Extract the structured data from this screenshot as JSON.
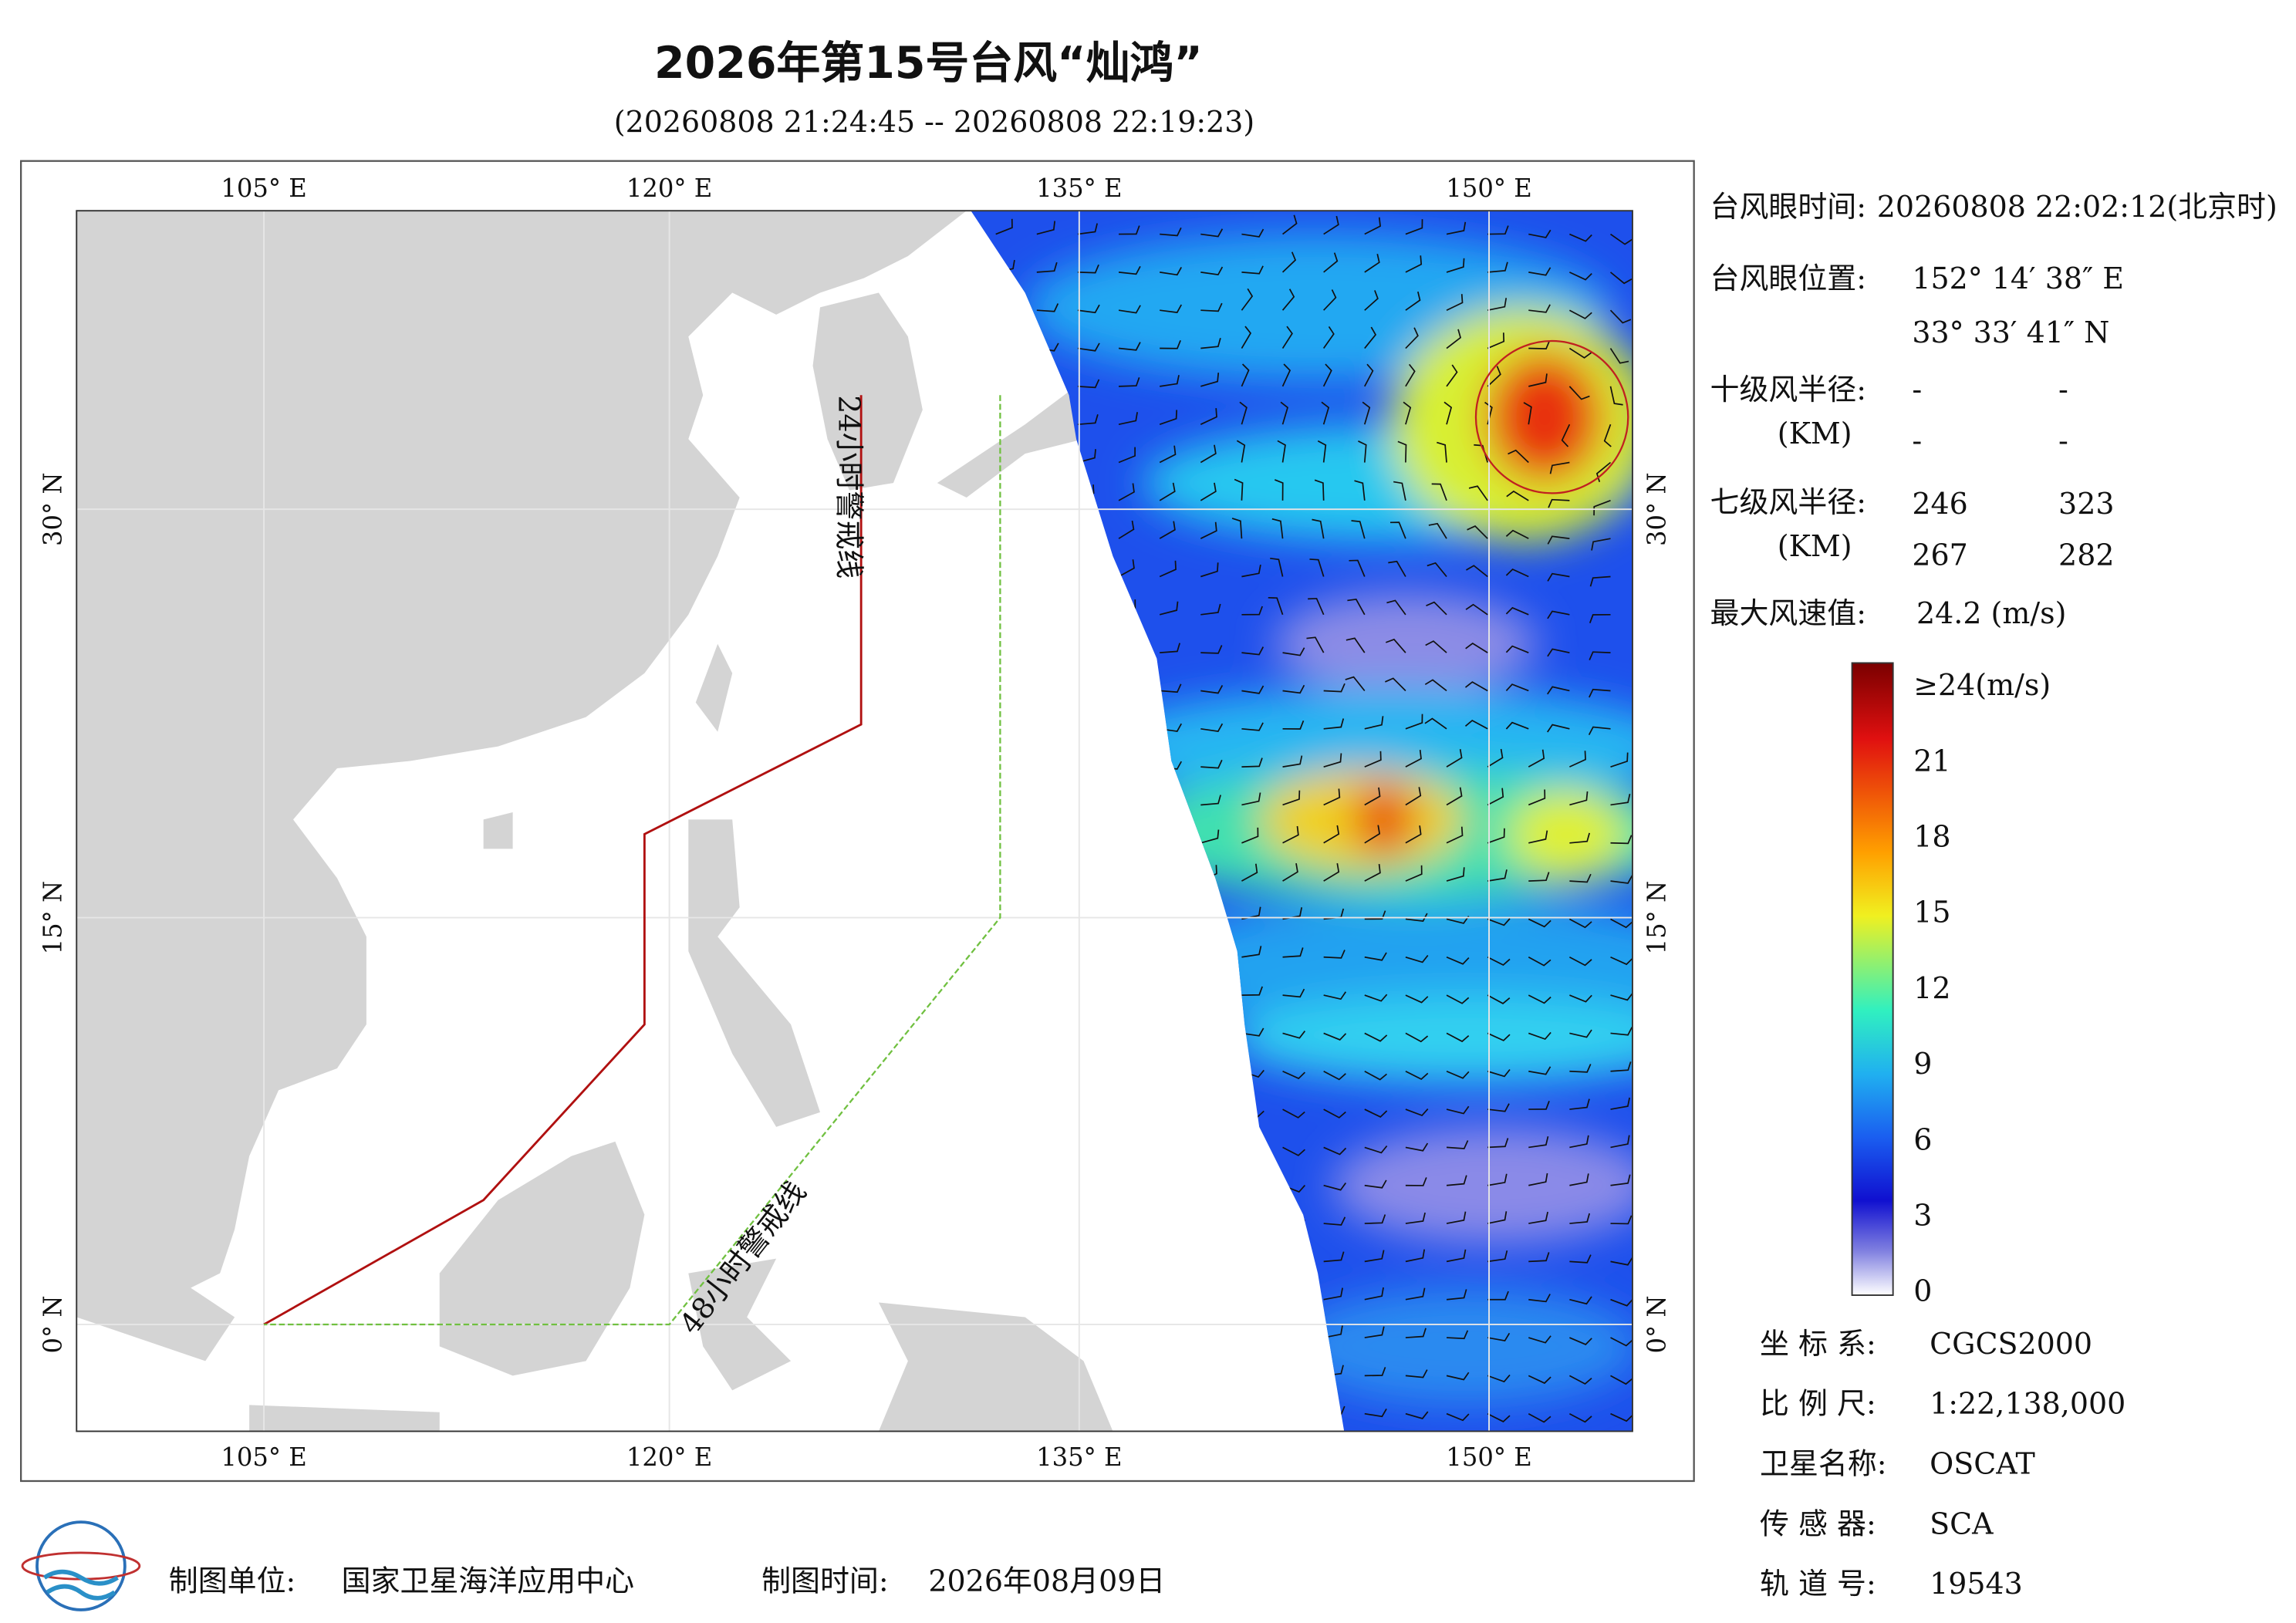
{
  "title": "2026年第15号台风“灿鸿”",
  "subtitle": "(20260808 21:24:45 -- 20260808 22:19:23)",
  "map": {
    "lon_labels": [
      "105° E",
      "120° E",
      "135° E",
      "150° E"
    ],
    "lat_labels": [
      "30° N",
      "15° N",
      "0° N"
    ],
    "warning_lines": [
      "24小时警戒线",
      "48小时警戒线"
    ]
  },
  "info": {
    "eye_time": {
      "label": "台风眼时间:",
      "value": "20260808 22:02:12(北京时)"
    },
    "eye_position": {
      "label": "台风眼位置:",
      "lon": "152° 14′ 38″ E",
      "lat": "33° 33′ 41″ N"
    },
    "r10": {
      "label": "十级风半径:",
      "unit": "(KM)",
      "values": [
        "-",
        "-",
        "-",
        "-"
      ]
    },
    "r7": {
      "label": "七级风半径:",
      "unit": "(KM)",
      "values": [
        "246",
        "323",
        "267",
        "282"
      ]
    },
    "max_wind": {
      "label": "最大风速值:",
      "value": "24.2  (m/s)"
    }
  },
  "colorbar": {
    "labels": [
      "≥24(m/s)",
      "21",
      "18",
      "15",
      "12",
      "9",
      "6",
      "3",
      "0"
    ]
  },
  "meta": [
    {
      "label": "坐 标 系:",
      "value": "CGCS2000"
    },
    {
      "label": "比 例 尺:",
      "value": "1:22,138,000"
    },
    {
      "label": "卫星名称:",
      "value": "OSCAT"
    },
    {
      "label": "传 感 器:",
      "value": "SCA"
    },
    {
      "label": "轨 道 号:",
      "value": "19543"
    }
  ],
  "footer": {
    "unit": {
      "label": "制图单位:",
      "value": "国家卫星海洋应用中心"
    },
    "time": {
      "label": "制图时间:",
      "value": "2026年08月09日"
    }
  }
}
